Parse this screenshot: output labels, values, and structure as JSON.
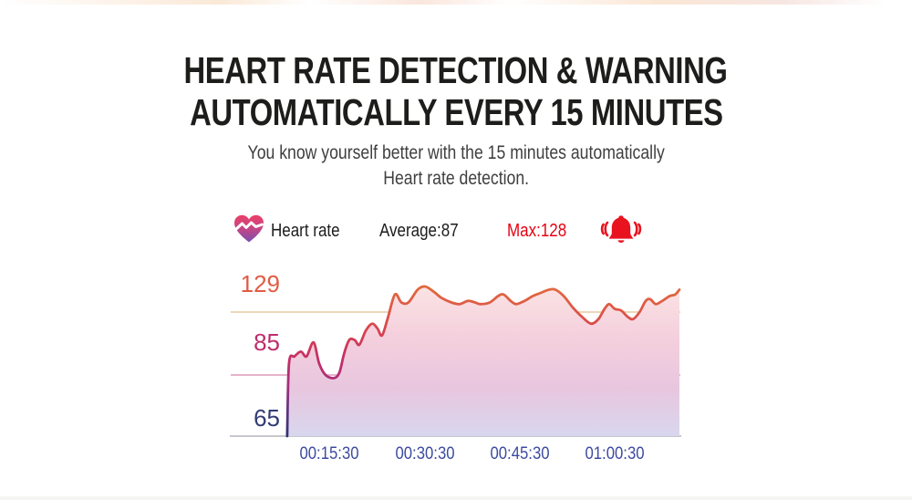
{
  "colors": {
    "title": "#1d1d1b",
    "subtitle": "#3f3f3f",
    "max_red": "#e60012",
    "bell_red": "#e8131f",
    "heart_gradient_top": "#ea4066",
    "heart_gradient_bottom": "#7a4fae",
    "y_tick_129": "#e05c44",
    "y_tick_85": "#bd2d6d",
    "y_tick_65": "#323c74",
    "x_tick_blue": "#3d4aa0",
    "grid_top": "#e9d3ae",
    "grid_mid": "#e3a8c4",
    "axis_gray": "#c7c7cd"
  },
  "header": {
    "title_line1": "HEART RATE DETECTION & WARNING",
    "title_line2": "AUTOMATICALLY EVERY 15 MINUTES",
    "subtitle_line1": "You know yourself better with the 15 minutes automatically",
    "subtitle_line2": "Heart rate detection."
  },
  "legend": {
    "series_label": "Heart rate",
    "average_text": "Average:87",
    "max_text": "Max:128"
  },
  "chart_data": {
    "type": "area",
    "title": "",
    "xlabel": "",
    "ylabel": "",
    "grid": true,
    "legend_position": "top",
    "stats": {
      "average": 87,
      "max": 128
    },
    "y_ticks": [
      "129",
      "85",
      "65"
    ],
    "x_ticks": [
      "00:15:30",
      "00:30:30",
      "00:45:30",
      "01:00:30"
    ],
    "ylim_display": [
      65,
      129
    ],
    "series": [
      {
        "name": "Heart rate",
        "unit": "bpm",
        "x_unit": "seconds",
        "points": [
          [
            2563,
            65
          ],
          [
            2569,
            90
          ],
          [
            2587,
            93
          ],
          [
            2608,
            95
          ],
          [
            2626,
            93
          ],
          [
            2649,
            99
          ],
          [
            2667,
            90
          ],
          [
            2688,
            85
          ],
          [
            2715,
            84
          ],
          [
            2733,
            86
          ],
          [
            2748,
            94
          ],
          [
            2765,
            100
          ],
          [
            2783,
            100
          ],
          [
            2798,
            98
          ],
          [
            2819,
            104
          ],
          [
            2840,
            107
          ],
          [
            2857,
            105
          ],
          [
            2872,
            102
          ],
          [
            2890,
            109
          ],
          [
            2914,
            123
          ],
          [
            2935,
            118
          ],
          [
            2958,
            118
          ],
          [
            2988,
            126
          ],
          [
            3012,
            128
          ],
          [
            3039,
            125
          ],
          [
            3065,
            121
          ],
          [
            3098,
            118
          ],
          [
            3125,
            117
          ],
          [
            3152,
            119
          ],
          [
            3175,
            118
          ],
          [
            3193,
            117
          ],
          [
            3223,
            118
          ],
          [
            3250,
            122
          ],
          [
            3268,
            123
          ],
          [
            3291,
            119
          ],
          [
            3309,
            117
          ],
          [
            3336,
            119
          ],
          [
            3363,
            122
          ],
          [
            3389,
            124
          ],
          [
            3416,
            126
          ],
          [
            3437,
            126
          ],
          [
            3464,
            122
          ],
          [
            3493,
            115
          ],
          [
            3523,
            110
          ],
          [
            3553,
            107
          ],
          [
            3577,
            109
          ],
          [
            3597,
            114
          ],
          [
            3612,
            117
          ],
          [
            3630,
            114
          ],
          [
            3651,
            113
          ],
          [
            3672,
            110
          ],
          [
            3690,
            109
          ],
          [
            3711,
            112
          ],
          [
            3731,
            119
          ],
          [
            3746,
            120
          ],
          [
            3764,
            117
          ],
          [
            3785,
            119
          ],
          [
            3809,
            122
          ],
          [
            3827,
            123
          ],
          [
            3841,
            126
          ]
        ]
      }
    ],
    "render": {
      "x_refs": [
        [
          2700,
          361
        ],
        [
          3630,
          674
        ]
      ],
      "y_refs": [
        [
          65,
          478
        ],
        [
          85,
          411
        ],
        [
          112,
          342
        ],
        [
          128,
          314
        ]
      ],
      "baseline_y": 478
    }
  }
}
